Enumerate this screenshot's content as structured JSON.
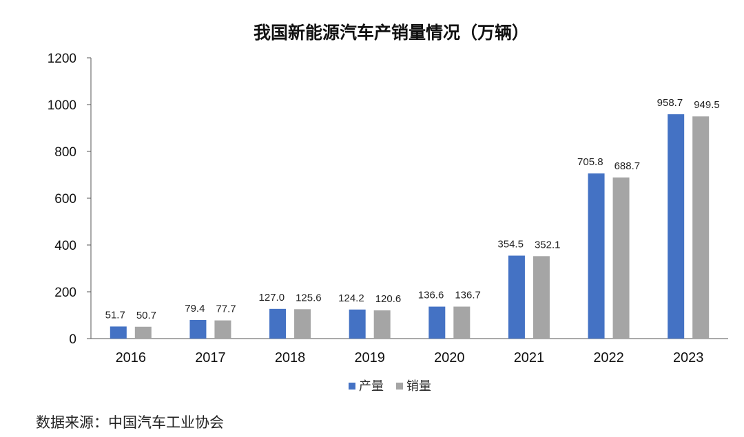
{
  "chart_data": {
    "type": "bar",
    "title": "我国新能源汽车产销量情况（万辆）",
    "categories": [
      "2016",
      "2017",
      "2018",
      "2019",
      "2020",
      "2021",
      "2022",
      "2023"
    ],
    "series": [
      {
        "name": "产量",
        "color": "#4472C4",
        "values": [
          51.7,
          79.4,
          127.0,
          124.2,
          136.6,
          354.5,
          705.8,
          958.7
        ],
        "labels": [
          "51.7",
          "79.4",
          "127.0",
          "124.2",
          "136.6",
          "354.5",
          "705.8",
          "958.7"
        ]
      },
      {
        "name": "销量",
        "color": "#A5A5A5",
        "values": [
          50.7,
          77.7,
          125.6,
          120.6,
          136.7,
          352.1,
          688.7,
          949.5
        ],
        "labels": [
          "50.7",
          "77.7",
          "125.6",
          "120.6",
          "136.7",
          "352.1",
          "688.7",
          "949.5"
        ]
      }
    ],
    "ylim": [
      0,
      1200
    ],
    "yticks": [
      "0",
      "200",
      "400",
      "600",
      "800",
      "1000",
      "1200"
    ],
    "xlabel": "",
    "ylabel": "",
    "grid": false,
    "legend_position": "bottom"
  },
  "source_note": "数据来源：中国汽车工业协会"
}
